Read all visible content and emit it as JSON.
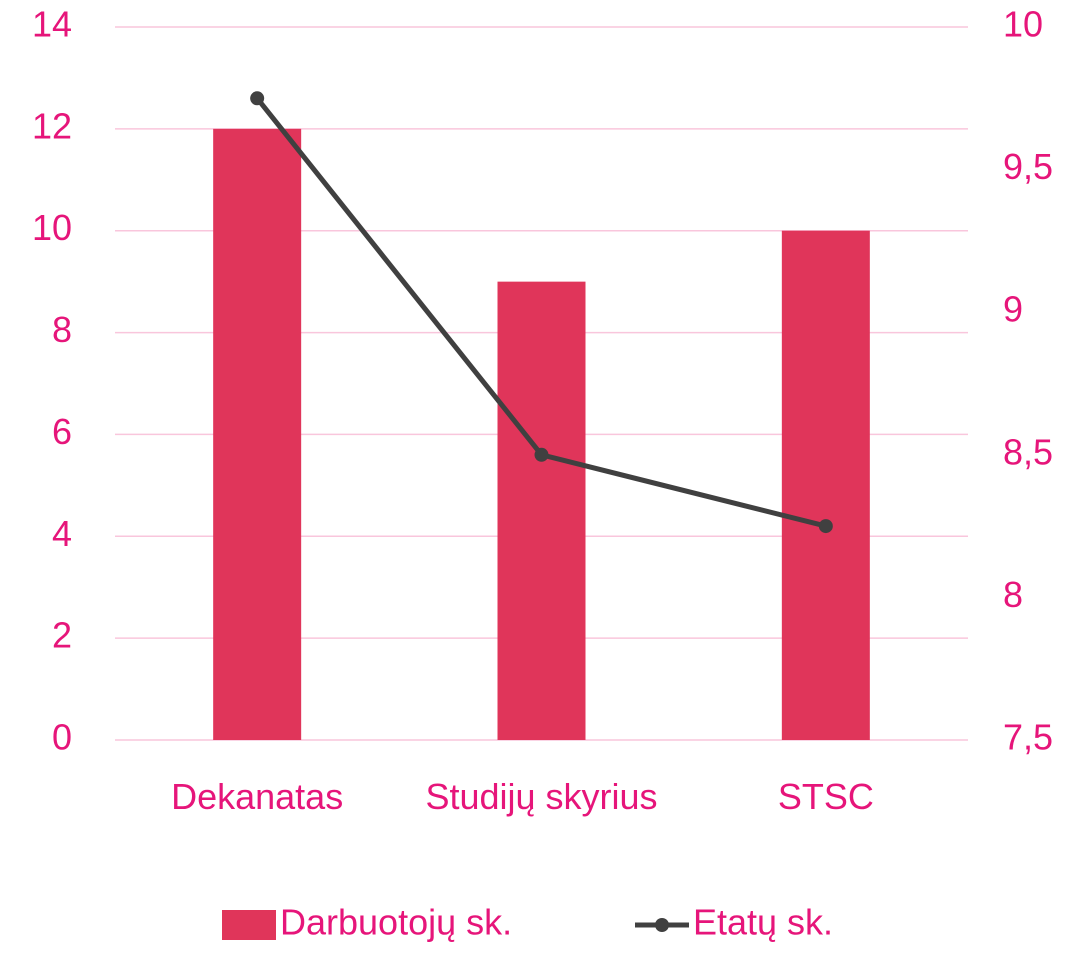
{
  "chart_data": {
    "type": "bar",
    "categories": [
      "Dekanatas",
      "Studijų skyrius",
      "STSC"
    ],
    "series": [
      {
        "name": "Darbuotojų sk.",
        "type": "bar",
        "color": "#e0355a",
        "values": [
          12,
          9,
          10
        ]
      },
      {
        "name": "Etatų sk.",
        "type": "line",
        "axis": "y2",
        "color": "#404040",
        "values": [
          9.75,
          8.5,
          8.25
        ]
      }
    ],
    "ylim": [
      0,
      14
    ],
    "yticks": [
      0,
      2,
      4,
      6,
      8,
      10,
      12,
      14
    ],
    "y2lim": [
      7.5,
      10
    ],
    "y2ticks": [
      {
        "value": 7.5,
        "label": "7,5"
      },
      8,
      {
        "value": 8.5,
        "label": "8,5"
      },
      9,
      {
        "value": 9.5,
        "label": "9,5"
      },
      10
    ],
    "grid": true,
    "legend": "bottom"
  }
}
